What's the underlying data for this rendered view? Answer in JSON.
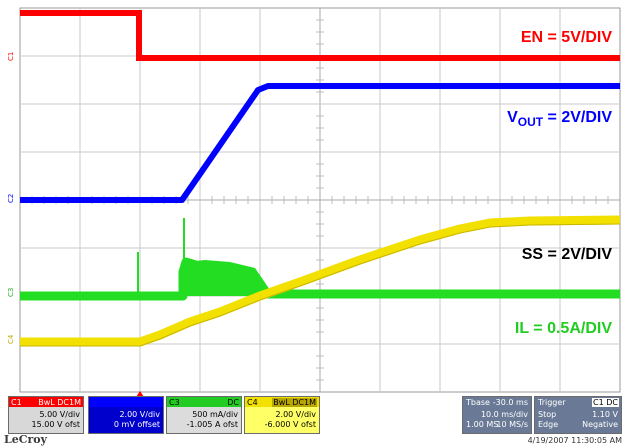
{
  "labels": {
    "en": "EN = 5V/DIV",
    "vout_prefix": "V",
    "vout_sub": "OUT",
    "vout_suffix": " = 2V/DIV",
    "ss": "SS = 2V/DIV",
    "il": "IL = 0.5A/DIV"
  },
  "markers": {
    "c1": "C1",
    "c2": "C2",
    "c3": "C3",
    "c4": "C4"
  },
  "channel_boxes": {
    "c1": {
      "id": "C1",
      "tags": "BwL DC1M",
      "scale": "5.00 V/div",
      "offset": "15.00 V ofst"
    },
    "c2": {
      "id": "",
      "tags": "",
      "scale": "2.00 V/div",
      "offset": "0 mV offset"
    },
    "c3": {
      "id": "C3",
      "tags": "DC",
      "scale": "500 mA/div",
      "offset": "-1.005 A ofst"
    },
    "c4": {
      "id": "C4",
      "tags": "BwL DC1M",
      "scale": "2.00 V/div",
      "offset": "-6.000 V ofst"
    }
  },
  "timebase": {
    "label": "Tbase",
    "value": "-30.0 ms",
    "per_div": "10.0 ms/div",
    "samples": "1.00 MS",
    "rate": "10 MS/s"
  },
  "trigger": {
    "label": "Trigger",
    "source": "C1 DC",
    "mode": "Stop",
    "level": "1.10 V",
    "type": "Edge",
    "slope": "Negative"
  },
  "brand": "LeCroy",
  "timestamp": "4/19/2007 11:30:05 AM",
  "colors": {
    "c1": "#ff0000",
    "c2": "#0000ff",
    "c3": "#22dd22",
    "c4": "#f2e000",
    "grid": "#c8c8c8"
  }
}
